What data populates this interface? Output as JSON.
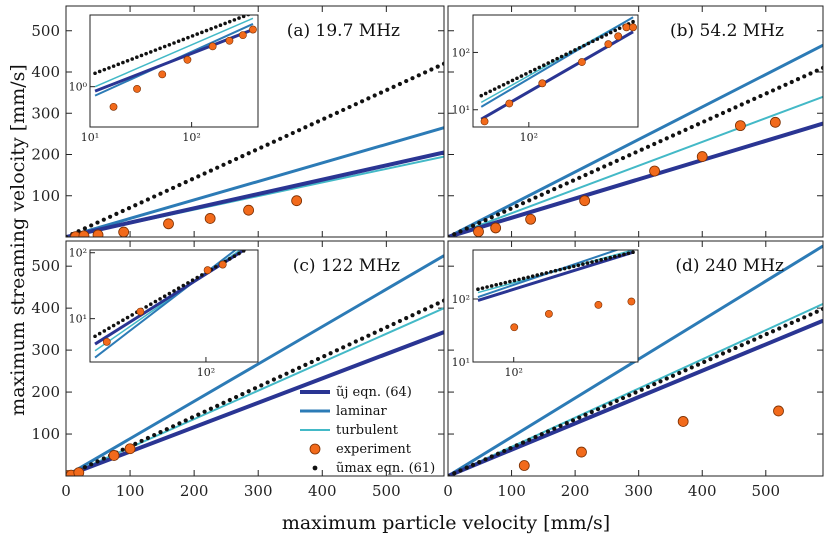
{
  "figure": {
    "xlabel": "maximum particle velocity [mm/s]",
    "ylabel": "maximum streaming velocity [mm/s]"
  },
  "legend": {
    "items": [
      {
        "key": "uj",
        "label": "ũj eqn. (64)",
        "kind": "line",
        "color": "#2a3593",
        "width": 4
      },
      {
        "key": "laminar",
        "label": "laminar",
        "kind": "line",
        "color": "#2c7bb6",
        "width": 3
      },
      {
        "key": "turbulent",
        "label": "turbulent",
        "kind": "line",
        "color": "#43b9c7",
        "width": 2
      },
      {
        "key": "experiment",
        "label": "experiment",
        "kind": "marker",
        "color": "#f26a1b"
      },
      {
        "key": "umax",
        "label": "ũmax eqn. (61)",
        "kind": "dots",
        "color": "#111111"
      }
    ]
  },
  "chart_data": [
    {
      "type": "line",
      "title": "(a) 19.7 MHz",
      "xlim": [
        0,
        590
      ],
      "ylim": [
        0,
        560
      ],
      "xticks": [
        0,
        100,
        200,
        300,
        400,
        500
      ],
      "yticks": [
        100,
        200,
        300,
        400,
        500
      ],
      "series": [
        {
          "key": "umax",
          "x": [
            0,
            590
          ],
          "y": [
            0,
            420
          ]
        },
        {
          "key": "laminar",
          "x": [
            0,
            590
          ],
          "y": [
            0,
            265
          ]
        },
        {
          "key": "uj",
          "x": [
            0,
            590
          ],
          "y": [
            0,
            205
          ]
        },
        {
          "key": "turbulent",
          "x": [
            0,
            590
          ],
          "y": [
            0,
            195
          ]
        },
        {
          "key": "experiment",
          "x": [
            15,
            28,
            50,
            90,
            160,
            225,
            285,
            360
          ],
          "y": [
            1,
            3,
            5,
            12,
            32,
            45,
            65,
            88
          ]
        }
      ],
      "inset": {
        "xscale": "log",
        "yscale": "log",
        "xlim": [
          10,
          450
        ],
        "ylim": [
          0.1,
          60
        ],
        "xticks": [
          10,
          100
        ],
        "xticklabels": [
          "10¹",
          "10²"
        ],
        "yticks": [
          1
        ],
        "yticklabels": [
          "10⁰"
        ]
      }
    },
    {
      "type": "line",
      "title": "(b) 54.2 MHz",
      "xlim": [
        0,
        590
      ],
      "ylim": [
        0,
        560
      ],
      "xticks": [
        0,
        100,
        200,
        300,
        400,
        500
      ],
      "yticks": [
        100,
        200,
        300,
        400,
        500
      ],
      "series": [
        {
          "key": "laminar",
          "x": [
            0,
            590
          ],
          "y": [
            0,
            465
          ]
        },
        {
          "key": "umax",
          "x": [
            0,
            590
          ],
          "y": [
            0,
            410
          ]
        },
        {
          "key": "turbulent",
          "x": [
            0,
            590
          ],
          "y": [
            0,
            340
          ]
        },
        {
          "key": "uj",
          "x": [
            0,
            590
          ],
          "y": [
            0,
            275
          ]
        },
        {
          "key": "experiment",
          "x": [
            48,
            75,
            130,
            215,
            325,
            400,
            460,
            515
          ],
          "y": [
            13,
            22,
            43,
            88,
            160,
            195,
            270,
            278
          ]
        }
      ],
      "inset": {
        "xscale": "log",
        "yscale": "log",
        "xlim": [
          40,
          600
        ],
        "ylim": [
          5,
          450
        ],
        "xticks": [
          100
        ],
        "xticklabels": [
          "10²"
        ],
        "yticks": [
          10,
          100
        ],
        "yticklabels": [
          "10¹",
          "10²"
        ]
      }
    },
    {
      "type": "line",
      "title": "(c) 122 MHz",
      "xlim": [
        0,
        590
      ],
      "ylim": [
        0,
        560
      ],
      "xticks": [
        0,
        100,
        200,
        300,
        400,
        500
      ],
      "yticks": [
        100,
        200,
        300,
        400,
        500
      ],
      "series": [
        {
          "key": "laminar",
          "x": [
            0,
            590
          ],
          "y": [
            0,
            525
          ]
        },
        {
          "key": "umax",
          "x": [
            0,
            590
          ],
          "y": [
            0,
            418
          ]
        },
        {
          "key": "turbulent",
          "x": [
            0,
            590
          ],
          "y": [
            0,
            400
          ]
        },
        {
          "key": "uj",
          "x": [
            0,
            590
          ],
          "y": [
            0,
            343
          ]
        },
        {
          "key": "experiment",
          "x": [
            3,
            8,
            20,
            75,
            100
          ],
          "y": [
            1,
            2,
            8,
            49,
            65
          ]
        }
      ],
      "inset": {
        "xscale": "log",
        "yscale": "log",
        "xlim": [
          7,
          330
        ],
        "ylim": [
          2.2,
          110
        ],
        "xticks": [
          100
        ],
        "xticklabels": [
          "10²"
        ],
        "yticks": [
          10,
          100
        ],
        "yticklabels": [
          "10¹",
          "10²"
        ]
      }
    },
    {
      "type": "line",
      "title": "(d) 240 MHz",
      "xlim": [
        0,
        590
      ],
      "ylim": [
        0,
        560
      ],
      "xticks": [
        0,
        100,
        200,
        300,
        400,
        500
      ],
      "yticks": [
        100,
        200,
        300,
        400,
        500
      ],
      "series": [
        {
          "key": "laminar",
          "x": [
            0,
            590
          ],
          "y": [
            0,
            548
          ]
        },
        {
          "key": "turbulent",
          "x": [
            0,
            590
          ],
          "y": [
            0,
            410
          ]
        },
        {
          "key": "umax",
          "x": [
            0,
            590
          ],
          "y": [
            0,
            398
          ]
        },
        {
          "key": "uj",
          "x": [
            0,
            590
          ],
          "y": [
            0,
            370
          ]
        },
        {
          "key": "experiment",
          "x": [
            120,
            210,
            370,
            520
          ],
          "y": [
            25,
            57,
            130,
            155
          ]
        }
      ],
      "inset": {
        "xscale": "log",
        "yscale": "log",
        "xlim": [
          55,
          620
        ],
        "ylim": [
          10,
          600
        ],
        "xticks": [
          100
        ],
        "xticklabels": [
          "10²"
        ],
        "yticks": [
          10,
          100
        ],
        "yticklabels": [
          "10¹",
          "10²"
        ]
      }
    }
  ]
}
